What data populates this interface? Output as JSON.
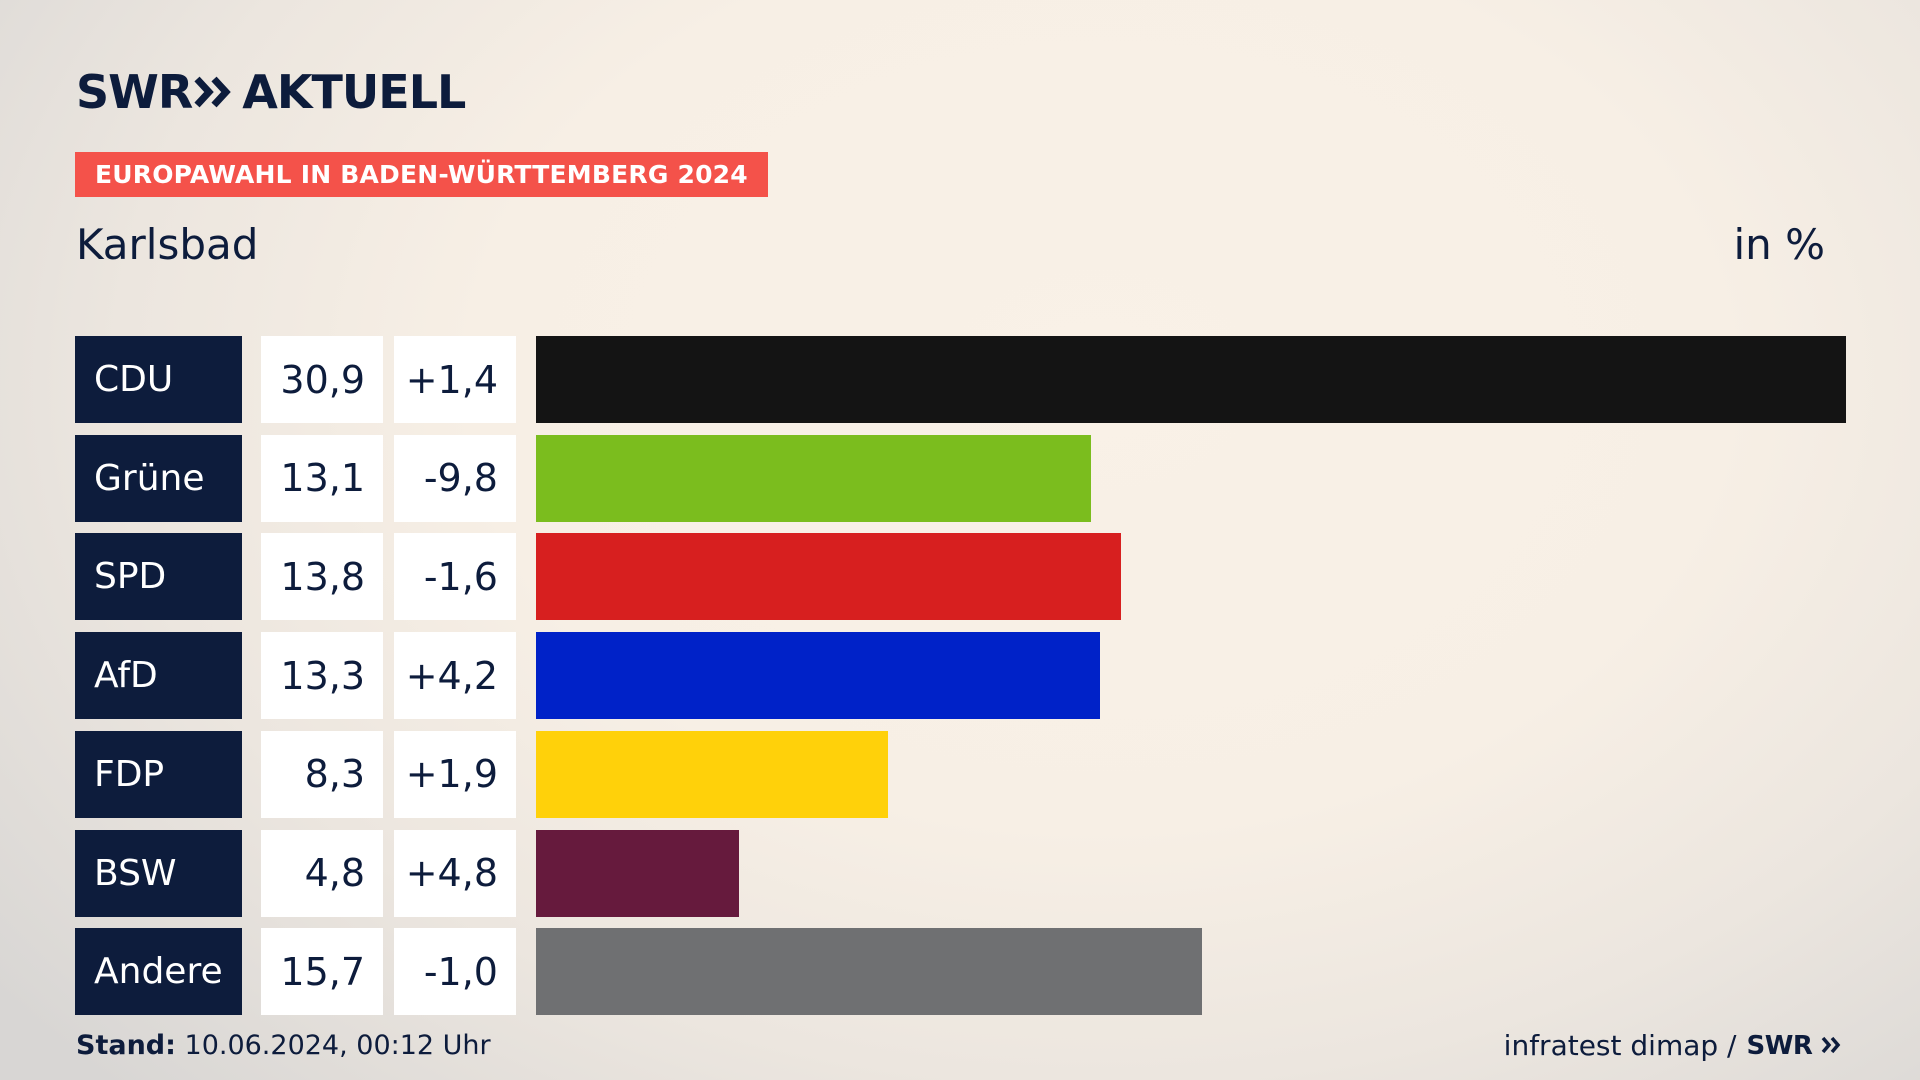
{
  "header": {
    "logo_text_left": "SWR",
    "logo_text_right": "AKTUELL",
    "tag": "EUROPAWAHL IN BADEN-WÜRTTEMBERG 2024",
    "place": "Karlsbad",
    "unit": "in %"
  },
  "footer": {
    "stand_label": "Stand:",
    "stand_value": "10.06.2024, 00:12 Uhr",
    "source": "infratest dimap /",
    "source_logo": "SWR"
  },
  "chart_data": {
    "type": "bar",
    "title": "Karlsbad",
    "unit": "in %",
    "xlim": [
      0,
      30.9
    ],
    "categories": [
      "CDU",
      "Grüne",
      "SPD",
      "AfD",
      "FDP",
      "BSW",
      "Andere"
    ],
    "values": [
      30.9,
      13.1,
      13.8,
      13.3,
      8.3,
      4.8,
      15.7
    ],
    "value_labels": [
      "30,9",
      "13,1",
      "13,8",
      "13,3",
      "8,3",
      "4,8",
      "15,7"
    ],
    "diff_labels": [
      "+1,4",
      "-9,8",
      "-1,6",
      "+4,2",
      "+1,9",
      "+4,8",
      "-1,0"
    ],
    "colors": [
      "#141414",
      "#7bbd1e",
      "#d71f1f",
      "#0022c8",
      "#ffd10a",
      "#661a3d",
      "#6f7072"
    ]
  }
}
